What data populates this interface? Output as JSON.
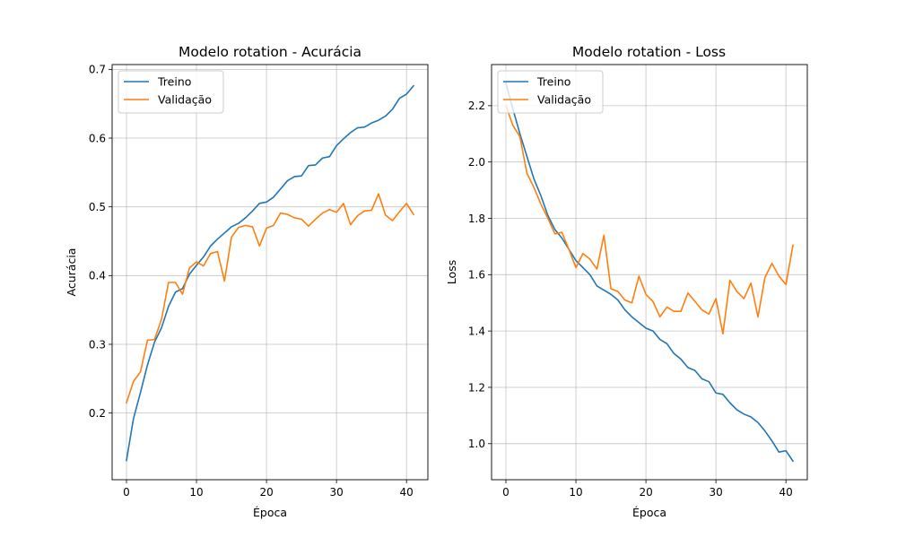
{
  "chart_data": [
    {
      "type": "line",
      "title": "Modelo rotation - Acurácia",
      "xlabel": "Época",
      "ylabel": "Acurácia",
      "xlim": [
        -2.05,
        43.05
      ],
      "ylim": [
        0.103,
        0.707
      ],
      "xticks": [
        0,
        10,
        20,
        30,
        40
      ],
      "yticks": [
        0.2,
        0.3,
        0.4,
        0.5,
        0.6,
        0.7
      ],
      "grid": true,
      "legend_position": "upper left",
      "x": [
        0,
        1,
        2,
        3,
        4,
        5,
        6,
        7,
        8,
        9,
        10,
        11,
        12,
        13,
        14,
        15,
        16,
        17,
        18,
        19,
        20,
        21,
        22,
        23,
        24,
        25,
        26,
        27,
        28,
        29,
        30,
        31,
        32,
        33,
        34,
        35,
        36,
        37,
        38,
        39,
        40,
        41
      ],
      "series": [
        {
          "name": "Treino",
          "color": "#1f77b4",
          "values": [
            0.131,
            0.192,
            0.23,
            0.27,
            0.303,
            0.324,
            0.355,
            0.376,
            0.381,
            0.402,
            0.415,
            0.427,
            0.443,
            0.453,
            0.462,
            0.471,
            0.476,
            0.484,
            0.494,
            0.505,
            0.507,
            0.514,
            0.526,
            0.538,
            0.544,
            0.545,
            0.56,
            0.561,
            0.571,
            0.573,
            0.589,
            0.599,
            0.608,
            0.615,
            0.616,
            0.622,
            0.626,
            0.632,
            0.642,
            0.658,
            0.664,
            0.676
          ]
        },
        {
          "name": "Validação",
          "color": "#ff7f0e",
          "values": [
            0.215,
            0.246,
            0.26,
            0.306,
            0.307,
            0.336,
            0.39,
            0.39,
            0.373,
            0.411,
            0.42,
            0.414,
            0.432,
            0.435,
            0.392,
            0.456,
            0.47,
            0.473,
            0.471,
            0.443,
            0.469,
            0.473,
            0.491,
            0.489,
            0.484,
            0.482,
            0.472,
            0.482,
            0.491,
            0.496,
            0.492,
            0.505,
            0.474,
            0.487,
            0.494,
            0.495,
            0.519,
            0.488,
            0.48,
            0.493,
            0.505,
            0.489
          ]
        }
      ]
    },
    {
      "type": "line",
      "title": "Modelo rotation - Loss",
      "xlabel": "Época",
      "ylabel": "Loss",
      "xlim": [
        -2.05,
        43.05
      ],
      "ylim": [
        0.872,
        2.346
      ],
      "xticks": [
        0,
        10,
        20,
        30,
        40
      ],
      "yticks": [
        1.0,
        1.2,
        1.4,
        1.6,
        1.8,
        2.0,
        2.2
      ],
      "ytick_labels": [
        "1.0",
        "1.2",
        "1.4",
        "1.6",
        "1.8",
        "2.0",
        "2.2"
      ],
      "grid": true,
      "legend_position": "upper left",
      "x": [
        0,
        1,
        2,
        3,
        4,
        5,
        6,
        7,
        8,
        9,
        10,
        11,
        12,
        13,
        14,
        15,
        16,
        17,
        18,
        19,
        20,
        21,
        22,
        23,
        24,
        25,
        26,
        27,
        28,
        29,
        30,
        31,
        32,
        33,
        34,
        35,
        36,
        37,
        38,
        39,
        40,
        41
      ],
      "series": [
        {
          "name": "Treino",
          "color": "#1f77b4",
          "values": [
            2.28,
            2.188,
            2.1,
            2.02,
            1.94,
            1.88,
            1.81,
            1.76,
            1.73,
            1.69,
            1.65,
            1.625,
            1.6,
            1.56,
            1.545,
            1.53,
            1.51,
            1.475,
            1.45,
            1.43,
            1.41,
            1.4,
            1.37,
            1.355,
            1.32,
            1.3,
            1.27,
            1.26,
            1.23,
            1.22,
            1.18,
            1.175,
            1.145,
            1.12,
            1.105,
            1.095,
            1.075,
            1.045,
            1.01,
            0.97,
            0.975,
            0.938
          ]
        },
        {
          "name": "Validação",
          "color": "#ff7f0e",
          "values": [
            2.2,
            2.13,
            2.09,
            1.96,
            1.91,
            1.85,
            1.8,
            1.745,
            1.75,
            1.69,
            1.625,
            1.675,
            1.655,
            1.62,
            1.74,
            1.55,
            1.54,
            1.51,
            1.5,
            1.595,
            1.53,
            1.505,
            1.45,
            1.485,
            1.47,
            1.47,
            1.535,
            1.505,
            1.475,
            1.46,
            1.515,
            1.39,
            1.58,
            1.54,
            1.515,
            1.57,
            1.45,
            1.59,
            1.64,
            1.595,
            1.565,
            1.705
          ]
        }
      ]
    }
  ]
}
